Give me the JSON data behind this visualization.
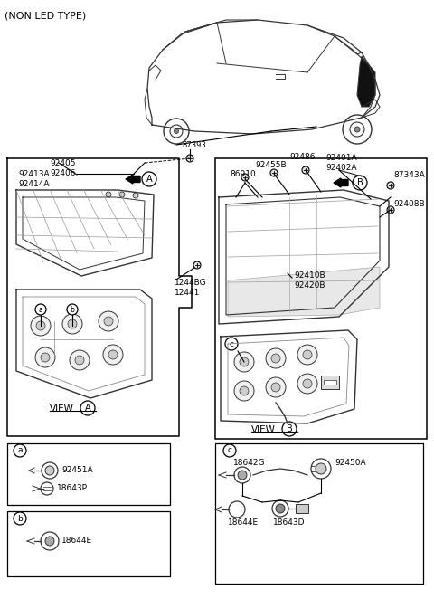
{
  "bg_color": "#ffffff",
  "lc": "#333333",
  "labels": {
    "title": "(NON LED TYPE)",
    "p87393": "87393",
    "p92405_92406": "92405\n92406",
    "p92413A_92414A": "92413A\n92414A",
    "p92455B": "92455B",
    "p86910": "86910",
    "p92486": "92486",
    "p92401A_92402A": "92401A\n92402A",
    "p87343A": "87343A",
    "p92408B": "92408B",
    "p92410B_92420B": "92410B\n92420B",
    "p1244BG_12441": "1244BG\n12441",
    "p92451A": "92451A",
    "p18643P": "18643P",
    "p18644E": "18644E",
    "p18642G": "18642G",
    "p92450A": "92450A",
    "p18644E2": "18644E",
    "p18643D": "18643D",
    "view_A": "VIEW",
    "view_B": "VIEW"
  },
  "fig_w": 4.8,
  "fig_h": 6.62,
  "dpi": 100
}
